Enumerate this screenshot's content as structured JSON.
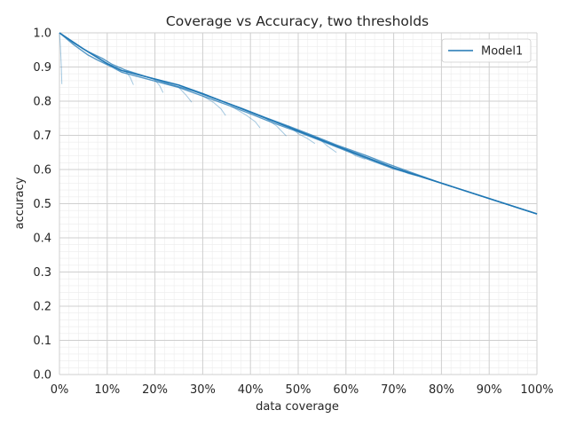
{
  "chart_data": {
    "type": "line",
    "title": "Coverage vs Accuracy, two thresholds",
    "xlabel": "data coverage",
    "ylabel": "accuracy",
    "xlim": [
      0,
      1
    ],
    "ylim": [
      0,
      1
    ],
    "x_ticks": [
      0,
      0.1,
      0.2,
      0.3,
      0.4,
      0.5,
      0.6,
      0.7,
      0.8,
      0.9,
      1.0
    ],
    "x_tick_labels": [
      "0%",
      "10%",
      "20%",
      "30%",
      "40%",
      "50%",
      "60%",
      "70%",
      "80%",
      "90%",
      "100%"
    ],
    "y_ticks": [
      0,
      0.1,
      0.2,
      0.3,
      0.4,
      0.5,
      0.6,
      0.7,
      0.8,
      0.9,
      1.0
    ],
    "y_tick_labels": [
      "0.0",
      "0.1",
      "0.2",
      "0.3",
      "0.4",
      "0.5",
      "0.6",
      "0.7",
      "0.8",
      "0.9",
      "1.0"
    ],
    "grid": true,
    "minor_grid": true,
    "legend": {
      "position": "top-right",
      "entries": [
        "Model1"
      ]
    },
    "series_color": "#1f77b4",
    "series": [
      {
        "name": "Model1",
        "x": [
          0.0,
          0.05,
          0.1,
          0.13,
          0.2,
          0.25,
          0.3,
          0.35,
          0.4,
          0.5,
          0.6,
          0.7,
          0.8,
          0.9,
          1.0
        ],
        "y": [
          1.0,
          0.953,
          0.91,
          0.89,
          0.865,
          0.847,
          0.822,
          0.795,
          0.768,
          0.713,
          0.658,
          0.605,
          0.56,
          0.515,
          0.47
        ]
      }
    ],
    "threshold_curves": [
      {
        "x": [
          0.0,
          0.01,
          0.03,
          0.06,
          0.09,
          0.11,
          0.14,
          0.19,
          0.23,
          0.28,
          0.33,
          0.38,
          0.43,
          0.48,
          0.53,
          0.58,
          0.64,
          0.69,
          0.74,
          0.8,
          0.9,
          1.0
        ],
        "y": [
          1.0,
          0.99,
          0.97,
          0.945,
          0.925,
          0.908,
          0.89,
          0.868,
          0.85,
          0.83,
          0.805,
          0.78,
          0.753,
          0.727,
          0.7,
          0.672,
          0.642,
          0.615,
          0.59,
          0.56,
          0.515,
          0.47
        ]
      },
      {
        "x": [
          0.0,
          0.03,
          0.06,
          0.08,
          0.11,
          0.13,
          0.17,
          0.21,
          0.25,
          0.3,
          0.35,
          0.4,
          0.45,
          0.5,
          0.55,
          0.6,
          0.65,
          0.7,
          0.75,
          0.8,
          0.9,
          1.0
        ],
        "y": [
          1.0,
          0.965,
          0.935,
          0.92,
          0.9,
          0.885,
          0.87,
          0.855,
          0.84,
          0.815,
          0.79,
          0.763,
          0.735,
          0.71,
          0.683,
          0.655,
          0.628,
          0.602,
          0.582,
          0.56,
          0.515,
          0.47
        ]
      }
    ],
    "drop_branches": [
      {
        "x": [
          0.0,
          0.002,
          0.004,
          0.005
        ],
        "y": [
          1.0,
          0.96,
          0.9,
          0.85
        ]
      },
      {
        "x": [
          0.14,
          0.148,
          0.155
        ],
        "y": [
          0.885,
          0.87,
          0.848
        ]
      },
      {
        "x": [
          0.2,
          0.21,
          0.217
        ],
        "y": [
          0.862,
          0.845,
          0.825
        ]
      },
      {
        "x": [
          0.25,
          0.265,
          0.277
        ],
        "y": [
          0.84,
          0.818,
          0.797
        ]
      },
      {
        "x": [
          0.3,
          0.322,
          0.338,
          0.348
        ],
        "y": [
          0.815,
          0.797,
          0.778,
          0.758
        ]
      },
      {
        "x": [
          0.36,
          0.39,
          0.41,
          0.42
        ],
        "y": [
          0.785,
          0.76,
          0.74,
          0.722
        ]
      },
      {
        "x": [
          0.43,
          0.455,
          0.475
        ],
        "y": [
          0.752,
          0.727,
          0.698
        ]
      },
      {
        "x": [
          0.48,
          0.5,
          0.52,
          0.535
        ],
        "y": [
          0.728,
          0.705,
          0.69,
          0.676
        ]
      },
      {
        "x": [
          0.54,
          0.56,
          0.58
        ],
        "y": [
          0.695,
          0.67,
          0.65
        ]
      },
      {
        "x": [
          0.6,
          0.62,
          0.64
        ],
        "y": [
          0.66,
          0.64,
          0.63
        ]
      },
      {
        "x": [
          0.66,
          0.69,
          0.71
        ],
        "y": [
          0.625,
          0.61,
          0.6
        ]
      },
      {
        "x": [
          0.71,
          0.73,
          0.76
        ],
        "y": [
          0.602,
          0.588,
          0.578
        ]
      }
    ]
  }
}
